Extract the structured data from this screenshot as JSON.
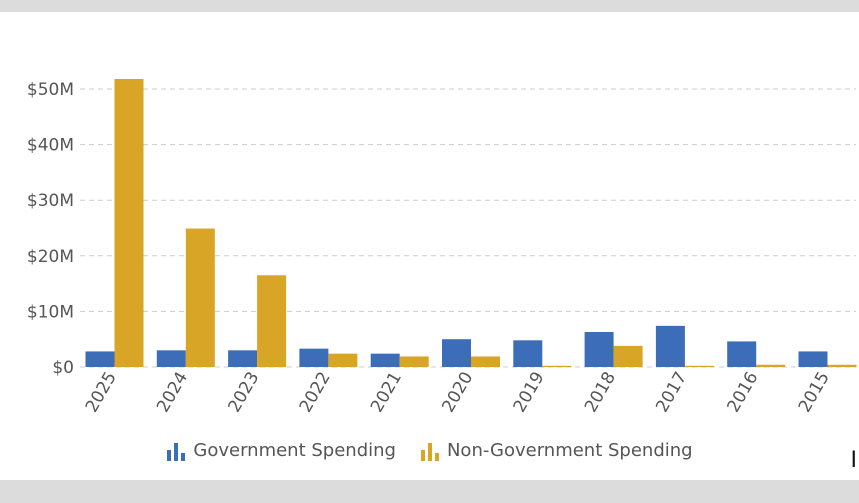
{
  "chart_data": {
    "type": "bar",
    "categories": [
      "2025",
      "2024",
      "2023",
      "2022",
      "2021",
      "2020",
      "2019",
      "2018",
      "2017",
      "2016",
      "2015"
    ],
    "series": [
      {
        "name": "Government Spending",
        "color": "#3c6db8",
        "values": [
          2.8,
          3.0,
          3.0,
          3.3,
          2.4,
          5.0,
          4.8,
          6.3,
          7.4,
          4.6,
          2.8
        ]
      },
      {
        "name": "Non-Government Spending",
        "color": "#d9a526",
        "values": [
          51.8,
          24.9,
          16.5,
          2.4,
          1.9,
          1.9,
          0.15,
          3.8,
          0.15,
          0.4,
          0.4
        ]
      }
    ],
    "y_ticks": [
      {
        "value": 0,
        "label": "$0"
      },
      {
        "value": 10,
        "label": "$10M"
      },
      {
        "value": 20,
        "label": "$20M"
      },
      {
        "value": 30,
        "label": "$30M"
      },
      {
        "value": 40,
        "label": "$40M"
      },
      {
        "value": 50,
        "label": "$50M"
      }
    ],
    "ylim": [
      0,
      50
    ],
    "y_unit": "millions USD",
    "grid": true,
    "legend_position": "bottom-center",
    "title": "",
    "xlabel": "",
    "ylabel": ""
  },
  "legend": {
    "government_label": "Government Spending",
    "non_government_label": "Non-Government Spending"
  },
  "corner_glyph": "I"
}
